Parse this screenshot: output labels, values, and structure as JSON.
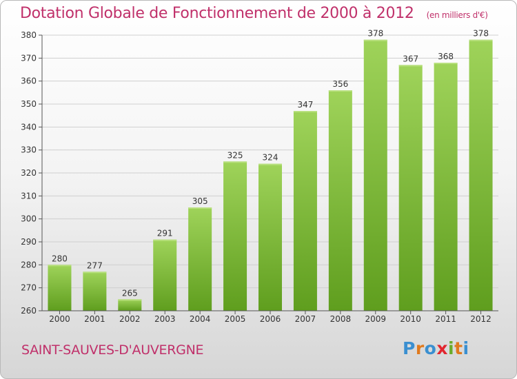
{
  "header": {
    "title": "Dotation Globale de Fonctionnement de 2000 à 2012",
    "subtitle": "(en milliers d'€)"
  },
  "footer": {
    "place": "SAINT-SAUVES-D'AUVERGNE",
    "brand": [
      "P",
      "r",
      "o",
      "x",
      "i",
      "t",
      "i"
    ],
    "brand_colors": [
      "#3a8fd0",
      "#e07a1e",
      "#3a8fd0",
      "#e2262f",
      "#6aac2a",
      "#e07a1e",
      "#3a8fd0"
    ]
  },
  "colors": {
    "bar_top": "#9fd35a",
    "bar_bottom": "#5f9e1e",
    "grid": "#cfcfcf",
    "axis": "#555555",
    "label": "#333333"
  },
  "chart_data": {
    "type": "bar",
    "title": "Dotation Globale de Fonctionnement de 2000 à 2012",
    "subtitle": "(en milliers d'€)",
    "categories": [
      "2000",
      "2001",
      "2002",
      "2003",
      "2004",
      "2005",
      "2006",
      "2007",
      "2008",
      "2009",
      "2010",
      "2011",
      "2012"
    ],
    "values": [
      280,
      277,
      265,
      291,
      305,
      325,
      324,
      347,
      356,
      378,
      367,
      368,
      378
    ],
    "ylim": [
      260,
      380
    ],
    "yticks": [
      260,
      270,
      280,
      290,
      300,
      310,
      320,
      330,
      340,
      350,
      360,
      370,
      380
    ],
    "grid": true,
    "data_labels": true
  }
}
